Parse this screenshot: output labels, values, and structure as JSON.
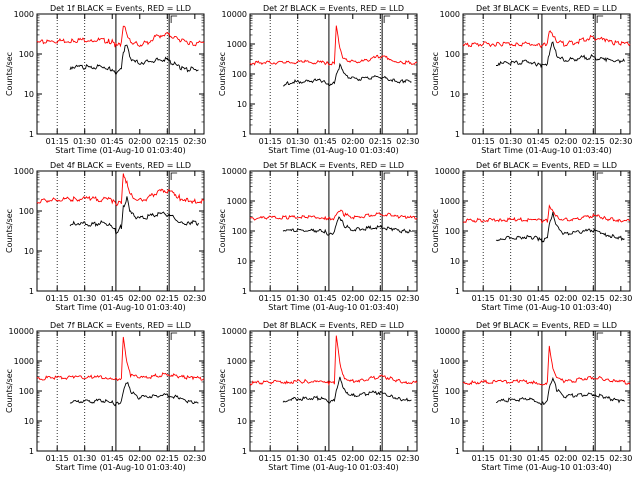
{
  "charts_meta": {
    "x_ticks": [
      "01:15",
      "01:30",
      "01:45",
      "02:00",
      "02:15",
      "02:30"
    ],
    "y_ticks": [
      "1",
      "10",
      "100",
      "1000",
      "10000"
    ],
    "ylabel": "Counts/sec",
    "xlabel": "Start Time (01-Aug-10 01:03:40)",
    "colors": {
      "events": "#000000",
      "lld": "#ff0000",
      "axes": "#000000"
    }
  },
  "chart_data": [
    {
      "type": "line",
      "title": "Det 1f BLACK = Events, RED = LLD",
      "xlabel": "Start Time (01-Aug-10 01:03:40)",
      "ylabel": "Counts/sec",
      "scale": "log",
      "ylim": [
        1,
        1000
      ],
      "xlim_minutes": [
        0,
        91
      ],
      "y_ticks": [
        "1",
        "10",
        "100",
        "1000"
      ],
      "series": [
        {
          "name": "Events",
          "color": "#000000",
          "x_minutes": [
            18,
            20,
            25,
            30,
            35,
            39,
            41,
            43,
            46,
            47,
            49,
            51,
            55,
            60,
            65,
            70,
            75,
            78,
            82,
            85,
            88
          ],
          "values": [
            40,
            45,
            48,
            45,
            50,
            45,
            40,
            30,
            40,
            110,
            180,
            80,
            60,
            65,
            70,
            75,
            55,
            45,
            40,
            45,
            40
          ]
        },
        {
          "name": "LLD",
          "color": "#ff0000",
          "x_minutes": [
            0,
            5,
            10,
            20,
            30,
            39,
            41,
            43,
            46,
            47,
            49,
            51,
            55,
            60,
            65,
            70,
            75,
            78,
            82,
            85,
            91
          ],
          "values": [
            190,
            200,
            210,
            220,
            230,
            210,
            200,
            160,
            180,
            520,
            330,
            210,
            170,
            190,
            270,
            320,
            260,
            210,
            200,
            180,
            190
          ]
        }
      ]
    },
    {
      "type": "line",
      "title": "Det 2f BLACK = Events, RED = LLD",
      "xlabel": "Start Time (01-Aug-10 01:03:40)",
      "ylabel": "Counts/sec",
      "scale": "log",
      "ylim": [
        1,
        10000
      ],
      "xlim_minutes": [
        0,
        91
      ],
      "y_ticks": [
        "1",
        "10",
        "100",
        "1000",
        "10000"
      ],
      "series": [
        {
          "name": "Events",
          "color": "#000000",
          "x_minutes": [
            18,
            20,
            25,
            30,
            35,
            39,
            41,
            43,
            46,
            47,
            49,
            51,
            55,
            60,
            65,
            70,
            75,
            78,
            82,
            85,
            88
          ],
          "values": [
            45,
            50,
            55,
            55,
            60,
            60,
            55,
            45,
            55,
            90,
            200,
            100,
            70,
            70,
            75,
            80,
            70,
            60,
            55,
            60,
            55
          ]
        },
        {
          "name": "LLD",
          "color": "#ff0000",
          "x_minutes": [
            0,
            5,
            10,
            20,
            30,
            39,
            41,
            43,
            46,
            47,
            49,
            51,
            55,
            60,
            65,
            70,
            75,
            78,
            82,
            85,
            91
          ],
          "values": [
            230,
            240,
            240,
            240,
            250,
            240,
            230,
            220,
            230,
            4500,
            700,
            320,
            260,
            250,
            300,
            380,
            340,
            280,
            250,
            240,
            240
          ]
        }
      ]
    },
    {
      "type": "line",
      "title": "Det 3f BLACK = Events, RED = LLD",
      "xlabel": "Start Time (01-Aug-10 01:03:40)",
      "ylabel": "Counts/sec",
      "scale": "log",
      "ylim": [
        1,
        1000
      ],
      "xlim_minutes": [
        0,
        91
      ],
      "y_ticks": [
        "1",
        "10",
        "100",
        "1000"
      ],
      "series": [
        {
          "name": "Events",
          "color": "#000000",
          "x_minutes": [
            18,
            20,
            25,
            30,
            35,
            39,
            41,
            43,
            46,
            47,
            49,
            51,
            55,
            60,
            65,
            70,
            75,
            78,
            82,
            85,
            88
          ],
          "values": [
            45,
            55,
            60,
            60,
            65,
            60,
            55,
            50,
            55,
            100,
            210,
            90,
            70,
            75,
            80,
            85,
            75,
            70,
            65,
            70,
            65
          ]
        },
        {
          "name": "LLD",
          "color": "#ff0000",
          "x_minutes": [
            0,
            5,
            10,
            20,
            30,
            39,
            41,
            43,
            46,
            47,
            49,
            51,
            55,
            60,
            65,
            70,
            75,
            78,
            82,
            85,
            91
          ],
          "values": [
            160,
            170,
            175,
            180,
            180,
            175,
            170,
            160,
            170,
            350,
            300,
            200,
            180,
            190,
            220,
            260,
            240,
            210,
            190,
            180,
            175
          ]
        }
      ]
    },
    {
      "type": "line",
      "title": "Det 4f BLACK = Events, RED = LLD",
      "xlabel": "Start Time (01-Aug-10 01:03:40)",
      "ylabel": "Counts/sec",
      "scale": "log",
      "ylim": [
        1,
        1000
      ],
      "xlim_minutes": [
        0,
        91
      ],
      "y_ticks": [
        "1",
        "10",
        "100",
        "1000"
      ],
      "series": [
        {
          "name": "Events",
          "color": "#000000",
          "x_minutes": [
            18,
            20,
            25,
            30,
            35,
            39,
            41,
            43,
            46,
            47,
            49,
            51,
            55,
            60,
            65,
            70,
            75,
            78,
            82,
            85,
            88
          ],
          "values": [
            45,
            50,
            48,
            45,
            50,
            45,
            40,
            30,
            40,
            120,
            220,
            90,
            65,
            70,
            80,
            85,
            65,
            55,
            50,
            55,
            50
          ]
        },
        {
          "name": "LLD",
          "color": "#ff0000",
          "x_minutes": [
            0,
            5,
            10,
            20,
            30,
            39,
            41,
            43,
            46,
            47,
            49,
            51,
            55,
            60,
            65,
            70,
            75,
            78,
            82,
            85,
            91
          ],
          "values": [
            170,
            180,
            190,
            200,
            200,
            190,
            180,
            150,
            160,
            900,
            500,
            250,
            180,
            200,
            280,
            330,
            270,
            210,
            190,
            170,
            180
          ]
        }
      ]
    },
    {
      "type": "line",
      "title": "Det 5f BLACK = Events, RED = LLD",
      "xlabel": "Start Time (01-Aug-10 01:03:40)",
      "ylabel": "Counts/sec",
      "scale": "log",
      "ylim": [
        1,
        10000
      ],
      "xlim_minutes": [
        0,
        91
      ],
      "y_ticks": [
        "1",
        "10",
        "100",
        "1000",
        "10000"
      ],
      "series": [
        {
          "name": "Events",
          "color": "#000000",
          "x_minutes": [
            18,
            20,
            25,
            30,
            35,
            39,
            41,
            43,
            46,
            47,
            49,
            51,
            55,
            60,
            65,
            70,
            75,
            78,
            82,
            85,
            88
          ],
          "values": [
            90,
            100,
            105,
            100,
            105,
            100,
            95,
            70,
            90,
            160,
            300,
            160,
            110,
            115,
            125,
            135,
            120,
            110,
            100,
            100,
            95
          ]
        },
        {
          "name": "LLD",
          "color": "#ff0000",
          "x_minutes": [
            0,
            5,
            10,
            20,
            30,
            39,
            41,
            43,
            46,
            47,
            49,
            51,
            55,
            60,
            65,
            70,
            75,
            78,
            82,
            85,
            91
          ],
          "values": [
            260,
            270,
            280,
            280,
            290,
            280,
            270,
            250,
            260,
            330,
            500,
            360,
            290,
            290,
            330,
            380,
            360,
            310,
            290,
            280,
            270
          ]
        }
      ]
    },
    {
      "type": "line",
      "title": "Det 6f BLACK = Events, RED = LLD",
      "xlabel": "Start Time (01-Aug-10 01:03:40)",
      "ylabel": "Counts/sec",
      "scale": "log",
      "ylim": [
        1,
        10000
      ],
      "xlim_minutes": [
        0,
        91
      ],
      "y_ticks": [
        "1",
        "10",
        "100",
        "1000",
        "10000"
      ],
      "series": [
        {
          "name": "Events",
          "color": "#000000",
          "x_minutes": [
            18,
            20,
            25,
            30,
            35,
            39,
            41,
            43,
            46,
            47,
            49,
            51,
            55,
            60,
            65,
            70,
            75,
            78,
            82,
            85,
            88
          ],
          "values": [
            50,
            55,
            60,
            60,
            65,
            60,
            55,
            45,
            60,
            180,
            400,
            140,
            80,
            85,
            95,
            105,
            90,
            75,
            65,
            60,
            55
          ]
        },
        {
          "name": "LLD",
          "color": "#ff0000",
          "x_minutes": [
            0,
            5,
            10,
            20,
            30,
            39,
            41,
            43,
            46,
            47,
            49,
            51,
            55,
            60,
            65,
            70,
            75,
            78,
            82,
            85,
            91
          ],
          "values": [
            220,
            225,
            230,
            230,
            240,
            230,
            225,
            210,
            220,
            700,
            500,
            290,
            240,
            240,
            270,
            320,
            300,
            260,
            240,
            230,
            225
          ]
        }
      ]
    },
    {
      "type": "line",
      "title": "Det 7f BLACK = Events, RED = LLD",
      "xlabel": "Start Time (01-Aug-10 01:03:40)",
      "ylabel": "Counts/sec",
      "scale": "log",
      "ylim": [
        1,
        10000
      ],
      "xlim_minutes": [
        0,
        91
      ],
      "y_ticks": [
        "1",
        "10",
        "100",
        "1000",
        "10000"
      ],
      "series": [
        {
          "name": "Events",
          "color": "#000000",
          "x_minutes": [
            18,
            20,
            25,
            30,
            35,
            39,
            41,
            43,
            46,
            47,
            49,
            51,
            55,
            60,
            65,
            70,
            75,
            78,
            82,
            85,
            88
          ],
          "values": [
            38,
            42,
            45,
            45,
            48,
            45,
            42,
            35,
            45,
            90,
            200,
            100,
            60,
            65,
            70,
            75,
            65,
            55,
            45,
            40,
            40
          ]
        },
        {
          "name": "LLD",
          "color": "#ff0000",
          "x_minutes": [
            0,
            5,
            10,
            20,
            30,
            39,
            41,
            43,
            46,
            47,
            49,
            51,
            55,
            60,
            65,
            70,
            75,
            78,
            82,
            85,
            91
          ],
          "values": [
            260,
            270,
            280,
            280,
            290,
            280,
            270,
            250,
            260,
            6000,
            800,
            340,
            280,
            290,
            320,
            360,
            340,
            300,
            280,
            270,
            260
          ]
        }
      ]
    },
    {
      "type": "line",
      "title": "Det 8f BLACK = Events, RED = LLD",
      "xlabel": "Start Time (01-Aug-10 01:03:40)",
      "ylabel": "Counts/sec",
      "scale": "log",
      "ylim": [
        1,
        10000
      ],
      "xlim_minutes": [
        0,
        91
      ],
      "y_ticks": [
        "1",
        "10",
        "100",
        "1000",
        "10000"
      ],
      "series": [
        {
          "name": "Events",
          "color": "#000000",
          "x_minutes": [
            18,
            20,
            25,
            30,
            35,
            39,
            41,
            43,
            46,
            47,
            49,
            51,
            55,
            60,
            65,
            70,
            75,
            78,
            82,
            85,
            88
          ],
          "values": [
            45,
            50,
            55,
            55,
            60,
            55,
            50,
            40,
            50,
            110,
            300,
            120,
            70,
            75,
            85,
            90,
            75,
            65,
            55,
            50,
            50
          ]
        },
        {
          "name": "LLD",
          "color": "#ff0000",
          "x_minutes": [
            0,
            5,
            10,
            20,
            30,
            39,
            41,
            43,
            46,
            47,
            49,
            51,
            55,
            60,
            65,
            70,
            75,
            78,
            82,
            85,
            91
          ],
          "values": [
            180,
            190,
            200,
            200,
            210,
            200,
            190,
            180,
            190,
            8000,
            900,
            300,
            220,
            230,
            260,
            300,
            280,
            240,
            210,
            200,
            190
          ]
        }
      ]
    },
    {
      "type": "line",
      "title": "Det 9f BLACK = Events, RED = LLD",
      "xlabel": "Start Time (01-Aug-10 01:03:40)",
      "ylabel": "Counts/sec",
      "scale": "log",
      "ylim": [
        1,
        10000
      ],
      "xlim_minutes": [
        0,
        91
      ],
      "y_ticks": [
        "1",
        "10",
        "100",
        "1000",
        "10000"
      ],
      "series": [
        {
          "name": "Events",
          "color": "#000000",
          "x_minutes": [
            18,
            20,
            25,
            30,
            35,
            39,
            41,
            43,
            46,
            47,
            49,
            51,
            55,
            60,
            65,
            70,
            75,
            78,
            82,
            85,
            88
          ],
          "values": [
            40,
            45,
            50,
            50,
            55,
            50,
            45,
            38,
            48,
            120,
            250,
            110,
            65,
            70,
            75,
            80,
            70,
            60,
            52,
            48,
            45
          ]
        },
        {
          "name": "LLD",
          "color": "#ff0000",
          "x_minutes": [
            0,
            5,
            10,
            20,
            30,
            39,
            41,
            43,
            46,
            47,
            49,
            51,
            55,
            60,
            65,
            70,
            75,
            78,
            82,
            85,
            91
          ],
          "values": [
            180,
            190,
            200,
            200,
            210,
            200,
            190,
            180,
            190,
            3000,
            500,
            260,
            210,
            220,
            250,
            290,
            270,
            230,
            210,
            200,
            190
          ]
        }
      ]
    }
  ]
}
